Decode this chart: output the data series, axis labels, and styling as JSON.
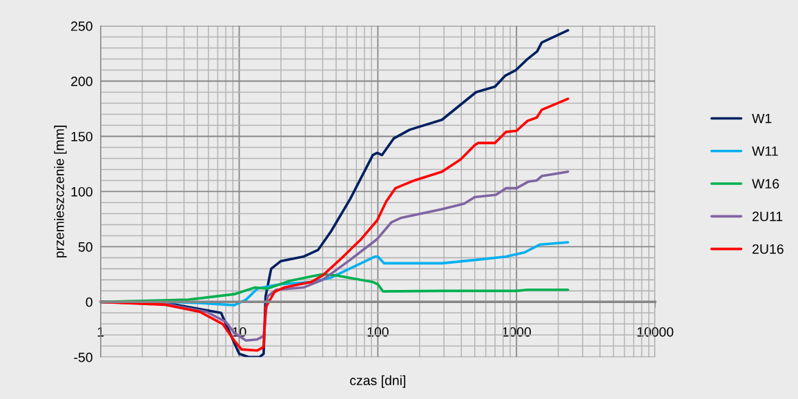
{
  "chart_data": {
    "type": "line",
    "xlabel": "czas [dni]",
    "ylabel": "przemieszczenie [mm]",
    "log": "x",
    "grid": true,
    "legend": "right",
    "marker": "none",
    "line_style": "solid",
    "xlim": [
      1,
      10000
    ],
    "xticks": [
      1,
      10,
      100,
      1000,
      10000
    ],
    "ylim": [
      -50,
      250
    ],
    "yticks": [
      -50,
      0,
      50,
      100,
      150,
      200,
      250
    ],
    "series": [
      {
        "name": "W1",
        "color": "#002060",
        "x": [
          1,
          3.3,
          7.4,
          9.2,
          10,
          11.7,
          14,
          15,
          15.5,
          17,
          20,
          29,
          37,
          46,
          63,
          92,
          99,
          107,
          130,
          170,
          290,
          511,
          700,
          830,
          990,
          1200,
          1410,
          1520,
          2350
        ],
        "values": [
          0,
          -2,
          -10,
          -37,
          -47,
          -50,
          -50,
          -47,
          5,
          30,
          37,
          41,
          47,
          64,
          93,
          133,
          135,
          133,
          148,
          156,
          165,
          190,
          195,
          205,
          210,
          220,
          227,
          235,
          246
        ]
      },
      {
        "name": "W11",
        "color": "#00b0f0",
        "x": [
          1,
          3,
          5.2,
          9.2,
          11.2,
          13.5,
          16,
          20,
          33,
          46,
          95,
          100,
          111,
          290,
          500,
          840,
          1150,
          1480,
          2350
        ],
        "values": [
          0,
          0,
          -1,
          -3,
          2,
          12,
          14,
          16,
          18,
          22,
          41,
          41,
          35,
          35,
          38,
          41,
          45,
          52,
          54
        ]
      },
      {
        "name": "W16",
        "color": "#00b050",
        "x": [
          1,
          4.3,
          9.2,
          13,
          16,
          23,
          33,
          40,
          50,
          92,
          100,
          109,
          290,
          1000,
          1200,
          2350
        ],
        "values": [
          0,
          2,
          7,
          13,
          12,
          19,
          23,
          25,
          24,
          18,
          16,
          9.5,
          10,
          10,
          11,
          11
        ]
      },
      {
        "name": "2U11",
        "color": "#8064a2",
        "x": [
          1,
          3,
          5.8,
          8,
          9.2,
          11.2,
          13.5,
          15,
          16,
          18.5,
          29,
          40,
          63,
          99,
          125,
          146,
          290,
          420,
          500,
          710,
          840,
          1000,
          1220,
          1400,
          1520,
          2350
        ],
        "values": [
          0,
          -2,
          -9,
          -18,
          -28,
          -35,
          -34,
          -31,
          5,
          11,
          13,
          20,
          38,
          57,
          72,
          76,
          84,
          89,
          95,
          97,
          103,
          103,
          109,
          110,
          114,
          118
        ]
      },
      {
        "name": "2U16",
        "color": "#ff0000",
        "x": [
          1,
          2.9,
          5.2,
          7.6,
          9.2,
          10.4,
          13.5,
          15,
          15.5,
          18,
          21,
          33,
          40,
          52,
          76,
          99,
          115,
          134,
          183,
          290,
          395,
          500,
          530,
          700,
          840,
          1000,
          1200,
          1400,
          1520,
          2350
        ],
        "values": [
          0,
          -2.5,
          -9,
          -20,
          -35,
          -43,
          -44,
          -41,
          -5,
          9,
          13,
          18,
          24,
          37,
          57,
          74,
          91,
          103,
          110,
          118,
          129,
          142,
          144,
          144,
          154,
          155,
          164,
          167,
          174,
          184
        ]
      }
    ]
  }
}
